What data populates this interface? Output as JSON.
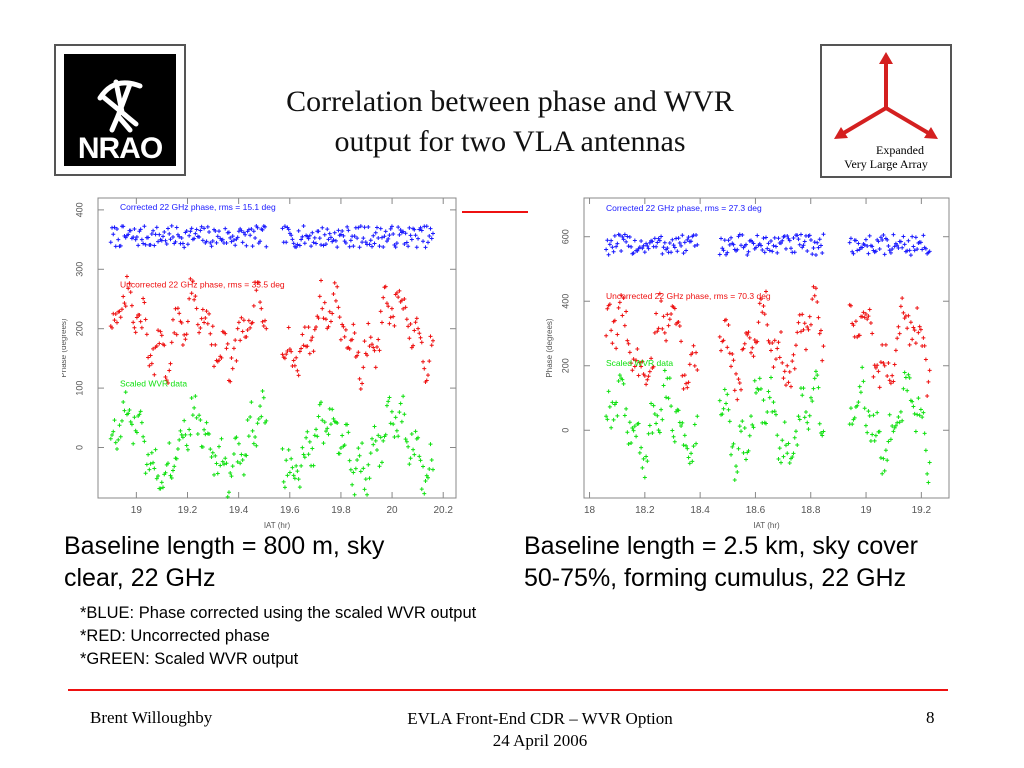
{
  "slide": {
    "title_line1": "Correlation between phase and WVR",
    "title_line2": "output for two VLA antennas",
    "caption_left_line1": "Baseline length = 800 m, sky",
    "caption_left_line2": "clear, 22 GHz",
    "caption_right_line1": "Baseline length = 2.5 km, sky cover",
    "caption_right_line2": "50-75%, forming cumulus, 22 GHz",
    "notes": [
      "*BLUE: Phase corrected using the scaled WVR output",
      "*RED: Uncorrected phase",
      "*GREEN: Scaled WVR output"
    ],
    "footer_author": "Brent Willoughby",
    "footer_center_line1": "EVLA Front-End CDR – WVR Option",
    "footer_center_line2": "24 April 2006",
    "footer_page": "8"
  },
  "logos": {
    "nrao_text": "NRAO",
    "evla_line1": "Expanded",
    "evla_line2": "Very Large Array",
    "accent_red": "#d42020"
  },
  "colors": {
    "corrected": "#1a1aff",
    "uncorrected": "#ee1111",
    "wvr": "#10e010",
    "axis_text": "#555555",
    "rule_red": "#e11111"
  },
  "chart_data": [
    {
      "type": "scatter",
      "title": "",
      "xlabel": "IAT (hr)",
      "ylabel": "Phase (degrees)",
      "xlim": [
        18.85,
        20.25
      ],
      "ylim": [
        -85,
        420
      ],
      "xticks": [
        19,
        19.2,
        19.4,
        19.6,
        19.8,
        20,
        20.2
      ],
      "yticks": [
        0,
        100,
        200,
        300,
        400
      ],
      "gaps": [
        [
          19.51,
          19.57
        ]
      ],
      "data_x": [
        18.9,
        20.16
      ],
      "series": [
        {
          "name": "Corrected 22 GHz phase, rms = 15.1 deg",
          "color": "#1a1aff",
          "mean": 355,
          "rms": 15.1
        },
        {
          "name": "Uncorrected 22 GHz phase, rms = 35.5 deg",
          "color": "#ee1111",
          "mean": 195,
          "rms": 35.5
        },
        {
          "name": "Scaled WVR data",
          "color": "#10e010",
          "mean": 5,
          "rms": 35.5
        }
      ]
    },
    {
      "type": "scatter",
      "title": "",
      "xlabel": "IAT (hr)",
      "ylabel": "Phase (degrees)",
      "xlim": [
        17.98,
        19.3
      ],
      "ylim": [
        -210,
        720
      ],
      "xticks": [
        18,
        18.2,
        18.4,
        18.6,
        18.8,
        19,
        19.2
      ],
      "yticks": [
        0,
        200,
        400,
        600
      ],
      "gaps": [
        [
          18.39,
          18.47
        ],
        [
          18.85,
          18.94
        ]
      ],
      "data_x": [
        18.06,
        19.23
      ],
      "series": [
        {
          "name": "Corrected 22 GHz phase, rms = 27.3 deg",
          "color": "#1a1aff",
          "mean": 575,
          "rms": 27.3
        },
        {
          "name": "Uncorrected 22 GHz phase, rms = 70.3 deg",
          "color": "#ee1111",
          "mean": 270,
          "rms": 70.3
        },
        {
          "name": "Scaled WVR data",
          "color": "#10e010",
          "mean": 20,
          "rms": 70.3
        }
      ]
    }
  ]
}
